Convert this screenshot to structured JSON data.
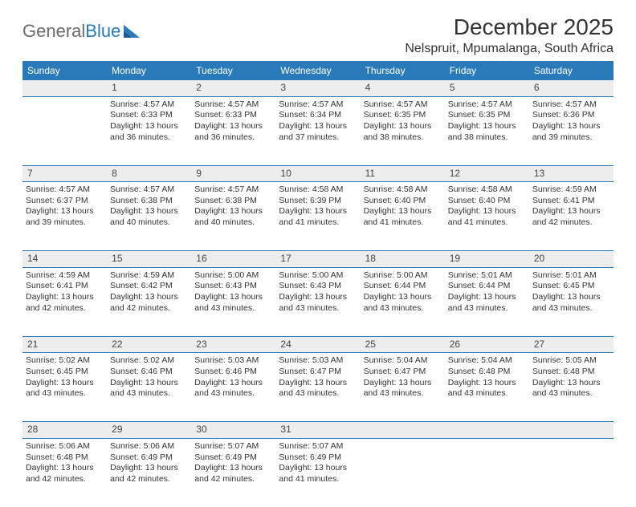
{
  "logo": {
    "text_gray": "General",
    "text_blue": "Blue"
  },
  "title": "December 2025",
  "location": "Nelspruit, Mpumalanga, South Africa",
  "colors": {
    "header_bg": "#2a7ab9",
    "header_text": "#ffffff",
    "daynum_bg": "#ededed",
    "divider": "#2a7ab9",
    "logo_gray": "#6b6b6b",
    "logo_blue": "#2a7ab9",
    "body_text": "#333333",
    "page_bg": "#ffffff"
  },
  "weekdays": [
    "Sunday",
    "Monday",
    "Tuesday",
    "Wednesday",
    "Thursday",
    "Friday",
    "Saturday"
  ],
  "weeks": [
    {
      "nums": [
        "",
        "1",
        "2",
        "3",
        "4",
        "5",
        "6"
      ],
      "cells": [
        null,
        {
          "sunrise": "Sunrise: 4:57 AM",
          "sunset": "Sunset: 6:33 PM",
          "day1": "Daylight: 13 hours",
          "day2": "and 36 minutes."
        },
        {
          "sunrise": "Sunrise: 4:57 AM",
          "sunset": "Sunset: 6:33 PM",
          "day1": "Daylight: 13 hours",
          "day2": "and 36 minutes."
        },
        {
          "sunrise": "Sunrise: 4:57 AM",
          "sunset": "Sunset: 6:34 PM",
          "day1": "Daylight: 13 hours",
          "day2": "and 37 minutes."
        },
        {
          "sunrise": "Sunrise: 4:57 AM",
          "sunset": "Sunset: 6:35 PM",
          "day1": "Daylight: 13 hours",
          "day2": "and 38 minutes."
        },
        {
          "sunrise": "Sunrise: 4:57 AM",
          "sunset": "Sunset: 6:35 PM",
          "day1": "Daylight: 13 hours",
          "day2": "and 38 minutes."
        },
        {
          "sunrise": "Sunrise: 4:57 AM",
          "sunset": "Sunset: 6:36 PM",
          "day1": "Daylight: 13 hours",
          "day2": "and 39 minutes."
        }
      ]
    },
    {
      "nums": [
        "7",
        "8",
        "9",
        "10",
        "11",
        "12",
        "13"
      ],
      "cells": [
        {
          "sunrise": "Sunrise: 4:57 AM",
          "sunset": "Sunset: 6:37 PM",
          "day1": "Daylight: 13 hours",
          "day2": "and 39 minutes."
        },
        {
          "sunrise": "Sunrise: 4:57 AM",
          "sunset": "Sunset: 6:38 PM",
          "day1": "Daylight: 13 hours",
          "day2": "and 40 minutes."
        },
        {
          "sunrise": "Sunrise: 4:57 AM",
          "sunset": "Sunset: 6:38 PM",
          "day1": "Daylight: 13 hours",
          "day2": "and 40 minutes."
        },
        {
          "sunrise": "Sunrise: 4:58 AM",
          "sunset": "Sunset: 6:39 PM",
          "day1": "Daylight: 13 hours",
          "day2": "and 41 minutes."
        },
        {
          "sunrise": "Sunrise: 4:58 AM",
          "sunset": "Sunset: 6:40 PM",
          "day1": "Daylight: 13 hours",
          "day2": "and 41 minutes."
        },
        {
          "sunrise": "Sunrise: 4:58 AM",
          "sunset": "Sunset: 6:40 PM",
          "day1": "Daylight: 13 hours",
          "day2": "and 41 minutes."
        },
        {
          "sunrise": "Sunrise: 4:59 AM",
          "sunset": "Sunset: 6:41 PM",
          "day1": "Daylight: 13 hours",
          "day2": "and 42 minutes."
        }
      ]
    },
    {
      "nums": [
        "14",
        "15",
        "16",
        "17",
        "18",
        "19",
        "20"
      ],
      "cells": [
        {
          "sunrise": "Sunrise: 4:59 AM",
          "sunset": "Sunset: 6:41 PM",
          "day1": "Daylight: 13 hours",
          "day2": "and 42 minutes."
        },
        {
          "sunrise": "Sunrise: 4:59 AM",
          "sunset": "Sunset: 6:42 PM",
          "day1": "Daylight: 13 hours",
          "day2": "and 42 minutes."
        },
        {
          "sunrise": "Sunrise: 5:00 AM",
          "sunset": "Sunset: 6:43 PM",
          "day1": "Daylight: 13 hours",
          "day2": "and 43 minutes."
        },
        {
          "sunrise": "Sunrise: 5:00 AM",
          "sunset": "Sunset: 6:43 PM",
          "day1": "Daylight: 13 hours",
          "day2": "and 43 minutes."
        },
        {
          "sunrise": "Sunrise: 5:00 AM",
          "sunset": "Sunset: 6:44 PM",
          "day1": "Daylight: 13 hours",
          "day2": "and 43 minutes."
        },
        {
          "sunrise": "Sunrise: 5:01 AM",
          "sunset": "Sunset: 6:44 PM",
          "day1": "Daylight: 13 hours",
          "day2": "and 43 minutes."
        },
        {
          "sunrise": "Sunrise: 5:01 AM",
          "sunset": "Sunset: 6:45 PM",
          "day1": "Daylight: 13 hours",
          "day2": "and 43 minutes."
        }
      ]
    },
    {
      "nums": [
        "21",
        "22",
        "23",
        "24",
        "25",
        "26",
        "27"
      ],
      "cells": [
        {
          "sunrise": "Sunrise: 5:02 AM",
          "sunset": "Sunset: 6:45 PM",
          "day1": "Daylight: 13 hours",
          "day2": "and 43 minutes."
        },
        {
          "sunrise": "Sunrise: 5:02 AM",
          "sunset": "Sunset: 6:46 PM",
          "day1": "Daylight: 13 hours",
          "day2": "and 43 minutes."
        },
        {
          "sunrise": "Sunrise: 5:03 AM",
          "sunset": "Sunset: 6:46 PM",
          "day1": "Daylight: 13 hours",
          "day2": "and 43 minutes."
        },
        {
          "sunrise": "Sunrise: 5:03 AM",
          "sunset": "Sunset: 6:47 PM",
          "day1": "Daylight: 13 hours",
          "day2": "and 43 minutes."
        },
        {
          "sunrise": "Sunrise: 5:04 AM",
          "sunset": "Sunset: 6:47 PM",
          "day1": "Daylight: 13 hours",
          "day2": "and 43 minutes."
        },
        {
          "sunrise": "Sunrise: 5:04 AM",
          "sunset": "Sunset: 6:48 PM",
          "day1": "Daylight: 13 hours",
          "day2": "and 43 minutes."
        },
        {
          "sunrise": "Sunrise: 5:05 AM",
          "sunset": "Sunset: 6:48 PM",
          "day1": "Daylight: 13 hours",
          "day2": "and 43 minutes."
        }
      ]
    },
    {
      "nums": [
        "28",
        "29",
        "30",
        "31",
        "",
        "",
        ""
      ],
      "cells": [
        {
          "sunrise": "Sunrise: 5:06 AM",
          "sunset": "Sunset: 6:48 PM",
          "day1": "Daylight: 13 hours",
          "day2": "and 42 minutes."
        },
        {
          "sunrise": "Sunrise: 5:06 AM",
          "sunset": "Sunset: 6:49 PM",
          "day1": "Daylight: 13 hours",
          "day2": "and 42 minutes."
        },
        {
          "sunrise": "Sunrise: 5:07 AM",
          "sunset": "Sunset: 6:49 PM",
          "day1": "Daylight: 13 hours",
          "day2": "and 42 minutes."
        },
        {
          "sunrise": "Sunrise: 5:07 AM",
          "sunset": "Sunset: 6:49 PM",
          "day1": "Daylight: 13 hours",
          "day2": "and 41 minutes."
        },
        null,
        null,
        null
      ]
    }
  ]
}
